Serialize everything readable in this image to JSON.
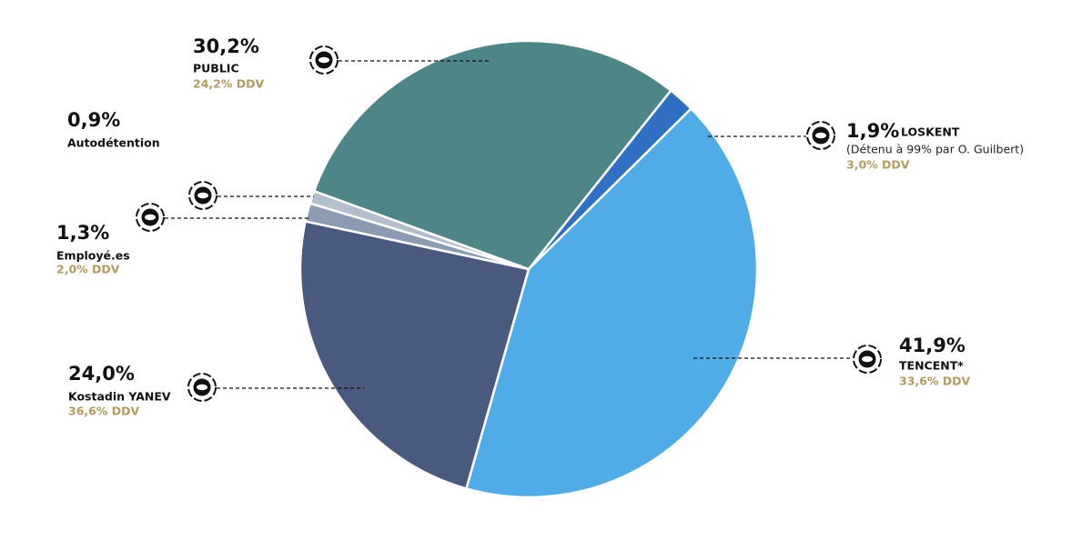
{
  "chart_data": {
    "type": "pie",
    "categories": [
      "LOSKENT",
      "TENCENT*",
      "Kostadin YANEV",
      "Employé.es",
      "Autodétention",
      "PUBLIC"
    ],
    "values": [
      1.9,
      41.9,
      24.0,
      1.3,
      0.9,
      30.2
    ],
    "value_labels": [
      "1,9%",
      "41,9%",
      "24,0%",
      "1,3%",
      "0,9%",
      "30,2%"
    ],
    "details": [
      "(Détenu à 99% par O. Guilbert)",
      null,
      null,
      null,
      null,
      null
    ],
    "ddv_labels": [
      "3,0% DDV",
      "33,6% DDV",
      "36,6% DDV",
      "2,0% DDV",
      null,
      "24,2% DDV"
    ],
    "colors": [
      "#2f6fc4",
      "#50ace6",
      "#4a5a7e",
      "#8b9cb2",
      "#b3bfcc",
      "#4e8688"
    ]
  }
}
